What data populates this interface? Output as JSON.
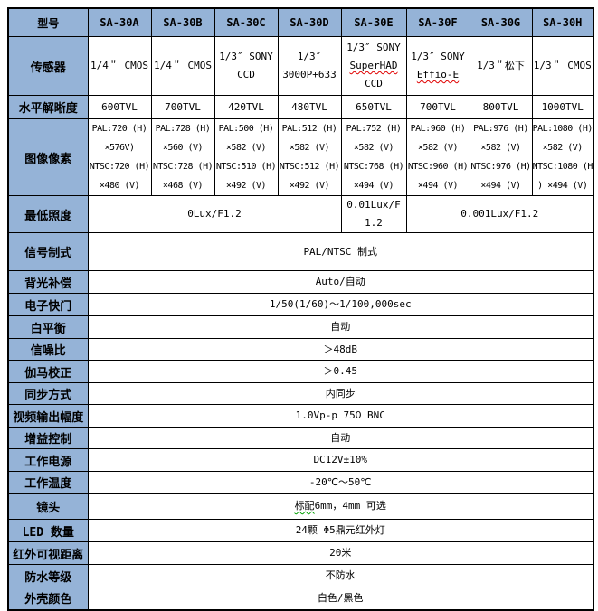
{
  "colors": {
    "header_fill": "#95B3D7",
    "border": "#000000",
    "text": "#000000",
    "spellcheck_red": "#e00000",
    "spellcheck_green": "#00a000"
  },
  "table": {
    "header": [
      "型号",
      "SA-30A",
      "SA-30B",
      "SA-30C",
      "SA-30D",
      "SA-30E",
      "SA-30F",
      "SA-30G",
      "SA-30H"
    ],
    "rows": [
      {
        "label": "传感器",
        "cells": [
          {
            "lines": [
              [
                {
                  "t": "1/4＂ CMOS"
                }
              ]
            ]
          },
          {
            "lines": [
              [
                {
                  "t": "1/4＂ CMOS"
                }
              ]
            ]
          },
          {
            "lines": [
              [
                {
                  "t": "1/3″ SONY"
                }
              ],
              [
                {
                  "t": "CCD"
                }
              ]
            ]
          },
          {
            "lines": [
              [
                {
                  "t": "1/3″"
                }
              ],
              [
                {
                  "t": "3000P+633"
                }
              ]
            ]
          },
          {
            "lines": [
              [
                {
                  "t": "1/3″ SONY"
                }
              ],
              [
                {
                  "t": "SuperHAD",
                  "u": "red"
                }
              ],
              [
                {
                  "t": "CCD"
                }
              ]
            ]
          },
          {
            "lines": [
              [
                {
                  "t": "1/3″ SONY"
                }
              ],
              [
                {
                  "t": "Effio-E",
                  "u": "red"
                }
              ]
            ]
          },
          {
            "lines": [
              [
                {
                  "t": "1/3＂松下"
                }
              ]
            ]
          },
          {
            "lines": [
              [
                {
                  "t": "1/3＂ CMOS"
                }
              ]
            ]
          }
        ]
      },
      {
        "label": "水平解晰度",
        "cells": [
          {
            "lines": [
              [
                {
                  "t": "600TVL"
                }
              ]
            ]
          },
          {
            "lines": [
              [
                {
                  "t": "700TVL"
                }
              ]
            ]
          },
          {
            "lines": [
              [
                {
                  "t": "420TVL"
                }
              ]
            ]
          },
          {
            "lines": [
              [
                {
                  "t": "480TVL"
                }
              ]
            ]
          },
          {
            "lines": [
              [
                {
                  "t": "650TVL"
                }
              ]
            ]
          },
          {
            "lines": [
              [
                {
                  "t": "700TVL"
                }
              ]
            ]
          },
          {
            "lines": [
              [
                {
                  "t": "800TVL"
                }
              ]
            ]
          },
          {
            "lines": [
              [
                {
                  "t": "1000TVL"
                }
              ]
            ]
          }
        ]
      },
      {
        "label": "图像像素",
        "cells": [
          {
            "lines": [
              [
                {
                  "t": "PAL:720 (H)"
                }
              ],
              [
                {
                  "t": "×576V)"
                }
              ],
              [
                {
                  "t": "NTSC:720 (H)"
                }
              ],
              [
                {
                  "t": "×480 (V)"
                }
              ]
            ]
          },
          {
            "lines": [
              [
                {
                  "t": "PAL:728 (H)"
                }
              ],
              [
                {
                  "t": "×560 (V)"
                }
              ],
              [
                {
                  "t": "NTSC:728 (H)"
                }
              ],
              [
                {
                  "t": "×468 (V)"
                }
              ]
            ]
          },
          {
            "lines": [
              [
                {
                  "t": "PAL:500 (H)"
                }
              ],
              [
                {
                  "t": "×582 (V)"
                }
              ],
              [
                {
                  "t": "NTSC:510 (H)"
                }
              ],
              [
                {
                  "t": "×492 (V)"
                }
              ]
            ]
          },
          {
            "lines": [
              [
                {
                  "t": "PAL:512 (H)"
                }
              ],
              [
                {
                  "t": "×582 (V)"
                }
              ],
              [
                {
                  "t": "NTSC:512 (H)"
                }
              ],
              [
                {
                  "t": "×492 (V)"
                }
              ]
            ]
          },
          {
            "lines": [
              [
                {
                  "t": "PAL:752 (H)"
                }
              ],
              [
                {
                  "t": "×582 (V)"
                }
              ],
              [
                {
                  "t": "NTSC:768 (H)"
                }
              ],
              [
                {
                  "t": "×494 (V)"
                }
              ]
            ]
          },
          {
            "lines": [
              [
                {
                  "t": "PAL:960 (H)"
                }
              ],
              [
                {
                  "t": "×582 (V)"
                }
              ],
              [
                {
                  "t": "NTSC:960 (H)"
                }
              ],
              [
                {
                  "t": "×494 (V)"
                }
              ]
            ]
          },
          {
            "lines": [
              [
                {
                  "t": "PAL:976 (H)"
                }
              ],
              [
                {
                  "t": "×582 (V)"
                }
              ],
              [
                {
                  "t": "NTSC:976 (H)"
                }
              ],
              [
                {
                  "t": "×494 (V)"
                }
              ]
            ]
          },
          {
            "lines": [
              [
                {
                  "t": "PAL:1080 (H)"
                }
              ],
              [
                {
                  "t": "×582 (V)"
                }
              ],
              [
                {
                  "t": "NTSC:1080 (H"
                }
              ],
              [
                {
                  "t": ") ×494 (V)"
                }
              ]
            ]
          }
        ]
      },
      {
        "label": "最低照度",
        "cells": [
          {
            "span": 4,
            "lines": [
              [
                {
                  "t": "0Lux/F1.2"
                }
              ]
            ]
          },
          {
            "span": 1,
            "lines": [
              [
                {
                  "t": "0.01Lux/F1.2"
                }
              ]
            ]
          },
          {
            "span": 3,
            "lines": [
              [
                {
                  "t": "0.001Lux/F1.2"
                }
              ]
            ]
          }
        ]
      },
      {
        "label": "信号制式",
        "cells": [
          {
            "span": 8,
            "lines": [
              [
                {
                  "t": "PAL/NTSC 制式"
                }
              ]
            ]
          }
        ]
      },
      {
        "label": "背光补偿",
        "cells": [
          {
            "span": 8,
            "lines": [
              [
                {
                  "t": "Auto/自动"
                }
              ]
            ]
          }
        ]
      },
      {
        "label": "电子快门",
        "cells": [
          {
            "span": 8,
            "lines": [
              [
                {
                  "t": "1/50(1/60)～1/100,000sec"
                }
              ]
            ]
          }
        ]
      },
      {
        "label": "白平衡",
        "cells": [
          {
            "span": 8,
            "lines": [
              [
                {
                  "t": "自动"
                }
              ]
            ]
          }
        ]
      },
      {
        "label": "信噪比",
        "cells": [
          {
            "span": 8,
            "lines": [
              [
                {
                  "t": "＞48dB"
                }
              ]
            ]
          }
        ]
      },
      {
        "label": "伽马校正",
        "cells": [
          {
            "span": 8,
            "lines": [
              [
                {
                  "t": "＞0.45"
                }
              ]
            ]
          }
        ]
      },
      {
        "label": "同步方式",
        "cells": [
          {
            "span": 8,
            "lines": [
              [
                {
                  "t": "内同步"
                }
              ]
            ]
          }
        ]
      },
      {
        "label": "视频输出幅度",
        "cells": [
          {
            "span": 8,
            "lines": [
              [
                {
                  "t": "1.0Vp-p 75Ω BNC"
                }
              ]
            ]
          }
        ]
      },
      {
        "label": "增益控制",
        "cells": [
          {
            "span": 8,
            "lines": [
              [
                {
                  "t": "自动"
                }
              ]
            ]
          }
        ]
      },
      {
        "label": "工作电源",
        "cells": [
          {
            "span": 8,
            "lines": [
              [
                {
                  "t": "DC12V±10%"
                }
              ]
            ]
          }
        ]
      },
      {
        "label": "工作温度",
        "cells": [
          {
            "span": 8,
            "lines": [
              [
                {
                  "t": "-20℃～50℃"
                }
              ]
            ]
          }
        ]
      },
      {
        "label": "镜头",
        "cells": [
          {
            "span": 8,
            "lines": [
              [
                {
                  "t": "标配",
                  "u": "green"
                },
                {
                  "t": "6mm，4mm 可选"
                }
              ]
            ]
          }
        ]
      },
      {
        "label": "LED 数量",
        "cells": [
          {
            "span": 8,
            "lines": [
              [
                {
                  "t": "24颗 Φ5鼎元红外灯"
                }
              ]
            ]
          }
        ]
      },
      {
        "label": "红外可视距离",
        "cells": [
          {
            "span": 8,
            "lines": [
              [
                {
                  "t": "20米"
                }
              ]
            ]
          }
        ]
      },
      {
        "label": "防水等级",
        "cells": [
          {
            "span": 8,
            "lines": [
              [
                {
                  "t": "不防水"
                }
              ]
            ]
          }
        ]
      },
      {
        "label": "外壳颜色",
        "cells": [
          {
            "span": 8,
            "lines": [
              [
                {
                  "t": "白色/黑色"
                }
              ]
            ]
          }
        ]
      }
    ]
  }
}
